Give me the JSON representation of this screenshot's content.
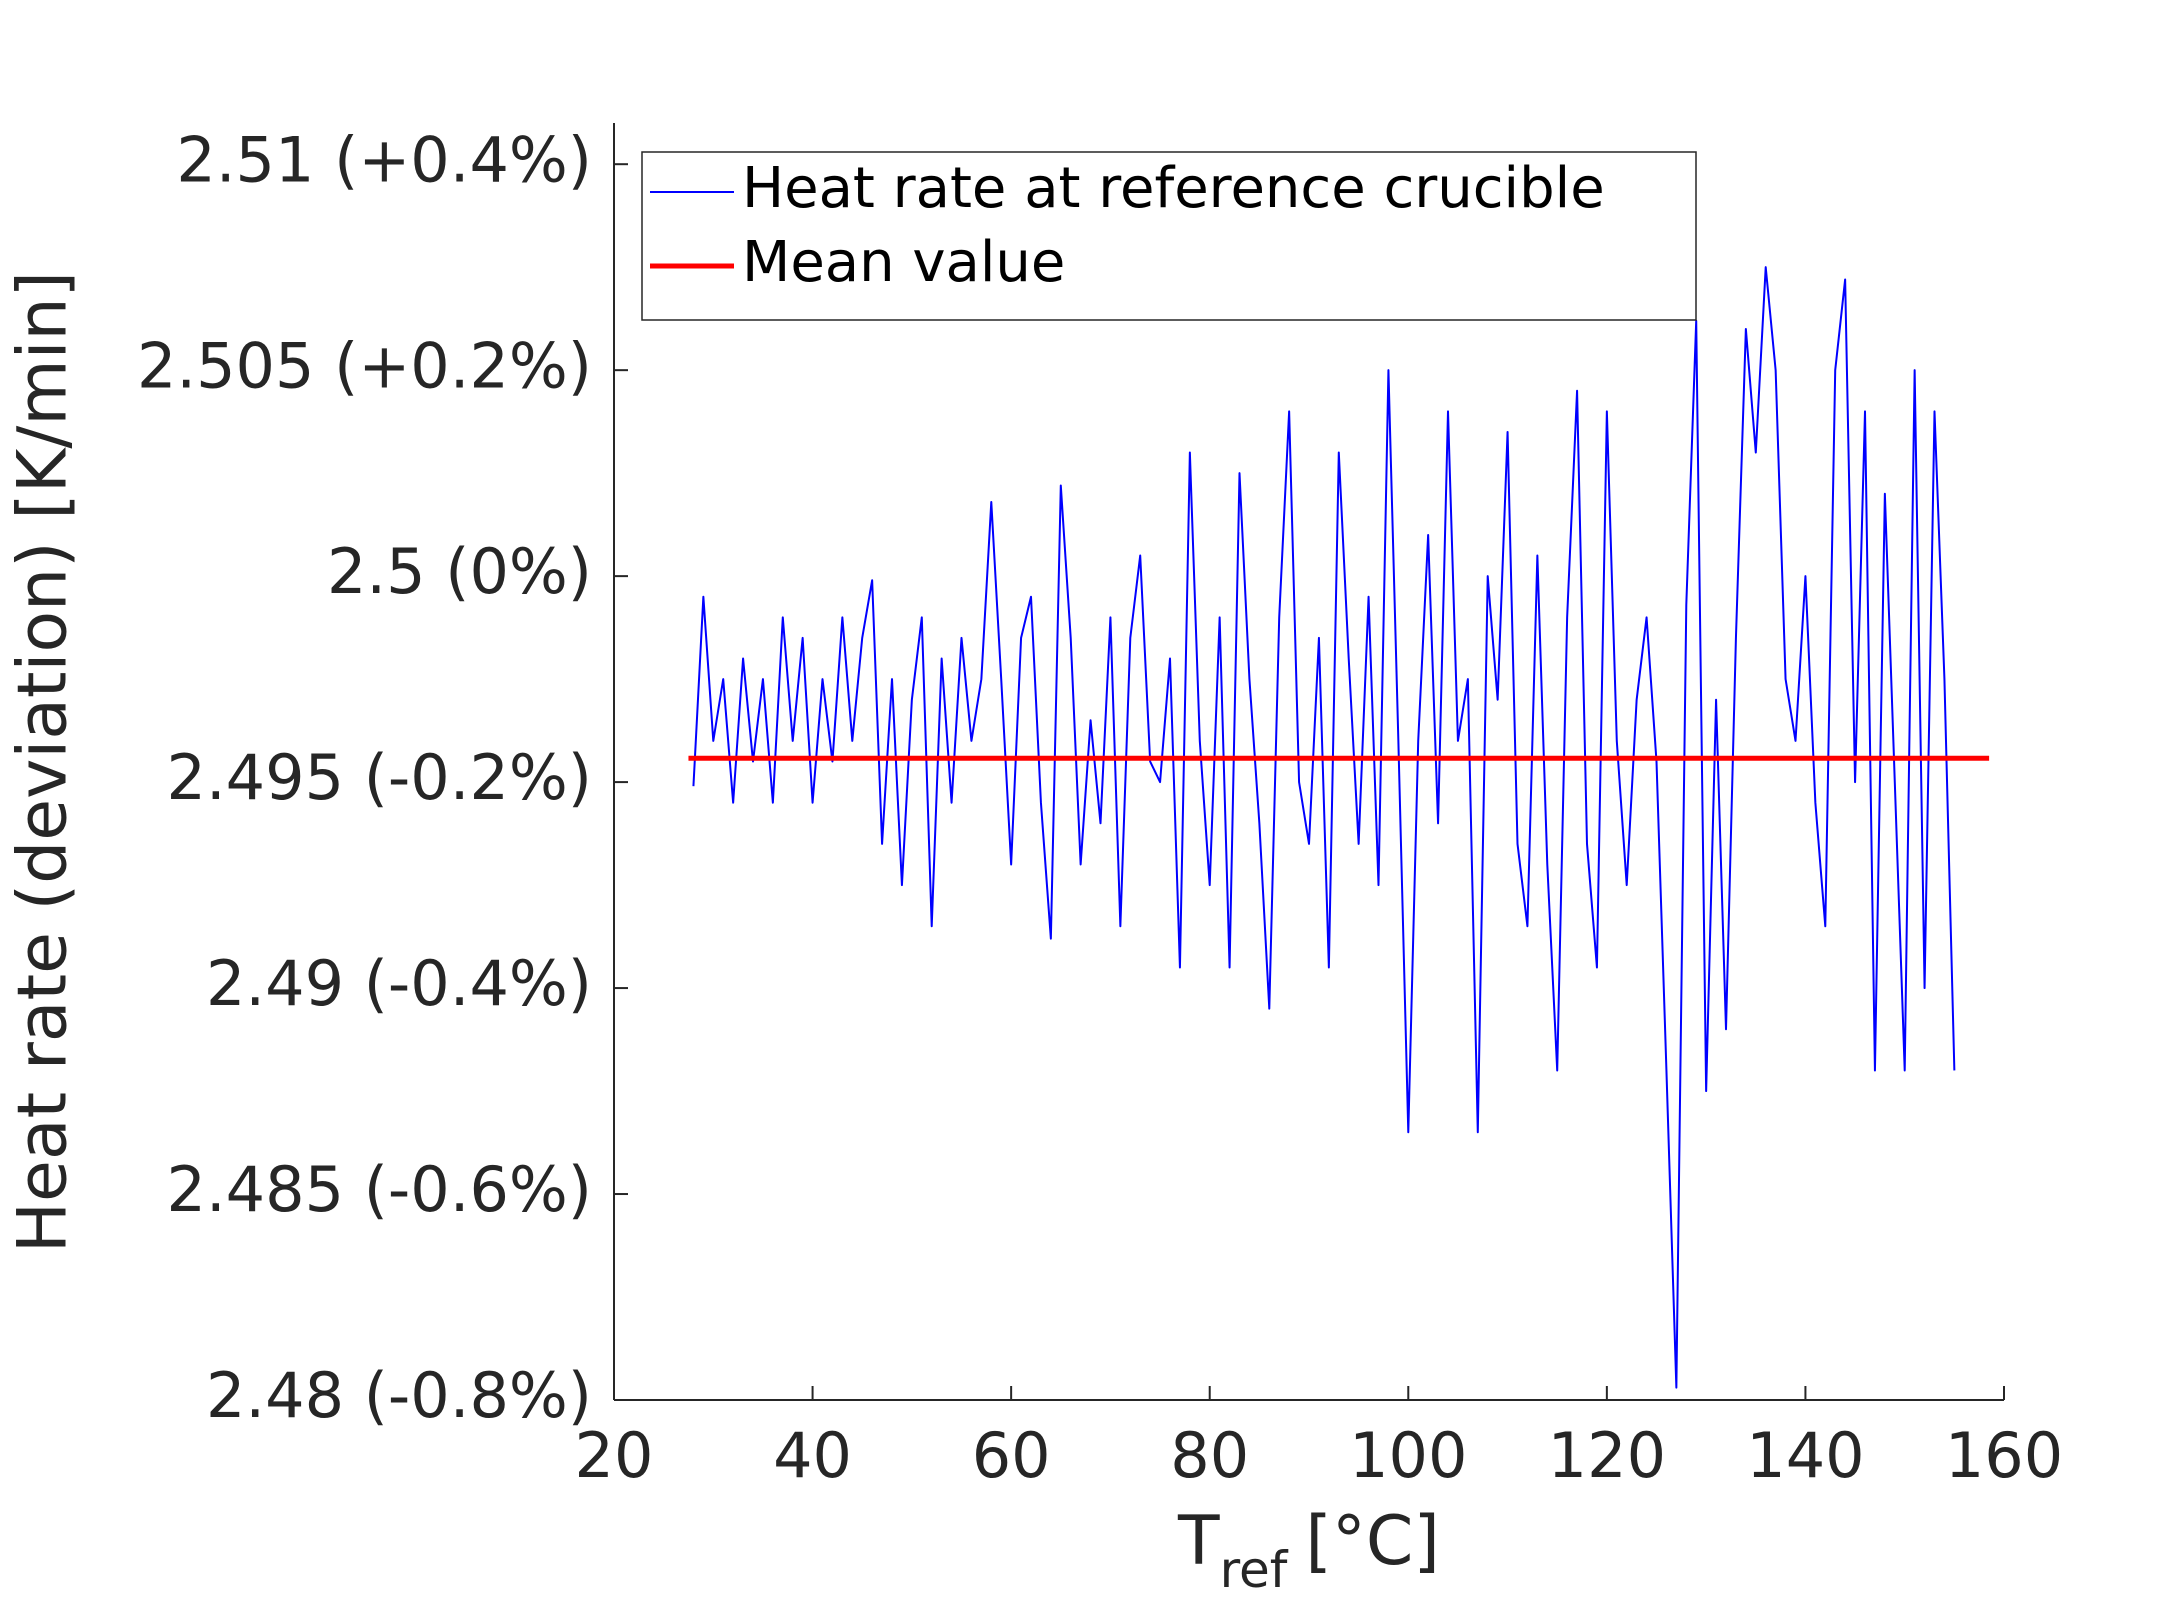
{
  "chart_data": {
    "type": "line",
    "x_label": "T",
    "x_label_subscript": "ref",
    "x_label_unit": "[°C]",
    "y_label": "Heat rate (deviation) [K/min]",
    "xlim": [
      20,
      160
    ],
    "xticks": [
      20,
      40,
      60,
      80,
      100,
      120,
      140,
      160
    ],
    "ylim": [
      2.48,
      2.511
    ],
    "yticks": [
      {
        "value": 2.48,
        "label": "2.48 (-0.8%)"
      },
      {
        "value": 2.485,
        "label": "2.485 (-0.6%)"
      },
      {
        "value": 2.49,
        "label": "2.49 (-0.4%)"
      },
      {
        "value": 2.495,
        "label": "2.495 (-0.2%)"
      },
      {
        "value": 2.5,
        "label": "2.5 (0%)"
      },
      {
        "value": 2.505,
        "label": "2.505 (+0.2%)"
      },
      {
        "value": 2.51,
        "label": "2.51 (+0.4%)"
      }
    ],
    "legend": "upper left",
    "grid": false,
    "series": [
      {
        "name": "Heat rate at reference crucible",
        "color": "#0000ff",
        "width": 2,
        "x": [
          28,
          29,
          30,
          31,
          32,
          33,
          34,
          35,
          36,
          37,
          38,
          39,
          40,
          41,
          42,
          43,
          44,
          45,
          46,
          47,
          48,
          49,
          50,
          51,
          52,
          53,
          54,
          55,
          56,
          57,
          58,
          59,
          60,
          61,
          62,
          63,
          64,
          65,
          66,
          67,
          68,
          69,
          70,
          71,
          72,
          73,
          74,
          75,
          76,
          77,
          78,
          79,
          80,
          81,
          82,
          83,
          84,
          85,
          86,
          87,
          88,
          89,
          90,
          91,
          92,
          93,
          94,
          95,
          96,
          97,
          98,
          99,
          100,
          101,
          102,
          103,
          104,
          105,
          106,
          107,
          108,
          109,
          110,
          111,
          112,
          113,
          114,
          115,
          116,
          117,
          118,
          119,
          120,
          121,
          122,
          123,
          124,
          125,
          126,
          127,
          128,
          129,
          130,
          131,
          132,
          133,
          134,
          135,
          136,
          137,
          138,
          139,
          140,
          141,
          142,
          143,
          144,
          145,
          146,
          147,
          148,
          149,
          150,
          151,
          152,
          153,
          154,
          155
        ],
        "values": [
          2.4949,
          2.4995,
          2.496,
          2.4975,
          2.4945,
          2.498,
          2.4955,
          2.4975,
          2.4945,
          2.499,
          2.496,
          2.4985,
          2.4945,
          2.4975,
          2.4955,
          2.499,
          2.496,
          2.4985,
          2.4999,
          2.4935,
          2.4975,
          2.4925,
          2.497,
          2.499,
          2.4915,
          2.498,
          2.4945,
          2.4985,
          2.496,
          2.4975,
          2.5018,
          2.4975,
          2.493,
          2.4985,
          2.4995,
          2.4945,
          2.4912,
          2.5022,
          2.4985,
          2.493,
          2.4965,
          2.494,
          2.499,
          2.4915,
          2.4985,
          2.5005,
          2.4955,
          2.495,
          2.498,
          2.4905,
          2.503,
          2.496,
          2.4925,
          2.499,
          2.4905,
          2.5025,
          2.4975,
          2.494,
          2.4895,
          2.499,
          2.504,
          2.495,
          2.4935,
          2.4985,
          2.4905,
          2.503,
          2.498,
          2.4935,
          2.4995,
          2.4925,
          2.505,
          2.496,
          2.4865,
          2.496,
          2.501,
          2.494,
          2.504,
          2.496,
          2.4975,
          2.4865,
          2.5,
          2.497,
          2.5035,
          2.4935,
          2.4915,
          2.5005,
          2.493,
          2.488,
          2.499,
          2.5045,
          2.4935,
          2.4905,
          2.504,
          2.496,
          2.4925,
          2.497,
          2.499,
          2.4955,
          2.488,
          2.4803,
          2.4993,
          2.5062,
          2.4875,
          2.497,
          2.489,
          2.4985,
          2.506,
          2.503,
          2.5075,
          2.505,
          2.4975,
          2.496,
          2.5,
          2.4945,
          2.4915,
          2.505,
          2.5072,
          2.495,
          2.504,
          2.488,
          2.502,
          2.495,
          2.488,
          2.505,
          2.49,
          2.504,
          2.4975,
          2.488
        ]
      },
      {
        "name": "Mean value",
        "color": "#ff0000",
        "width": 5,
        "x": [
          27.5,
          158.5
        ],
        "values": [
          2.49558,
          2.49558
        ]
      }
    ]
  }
}
